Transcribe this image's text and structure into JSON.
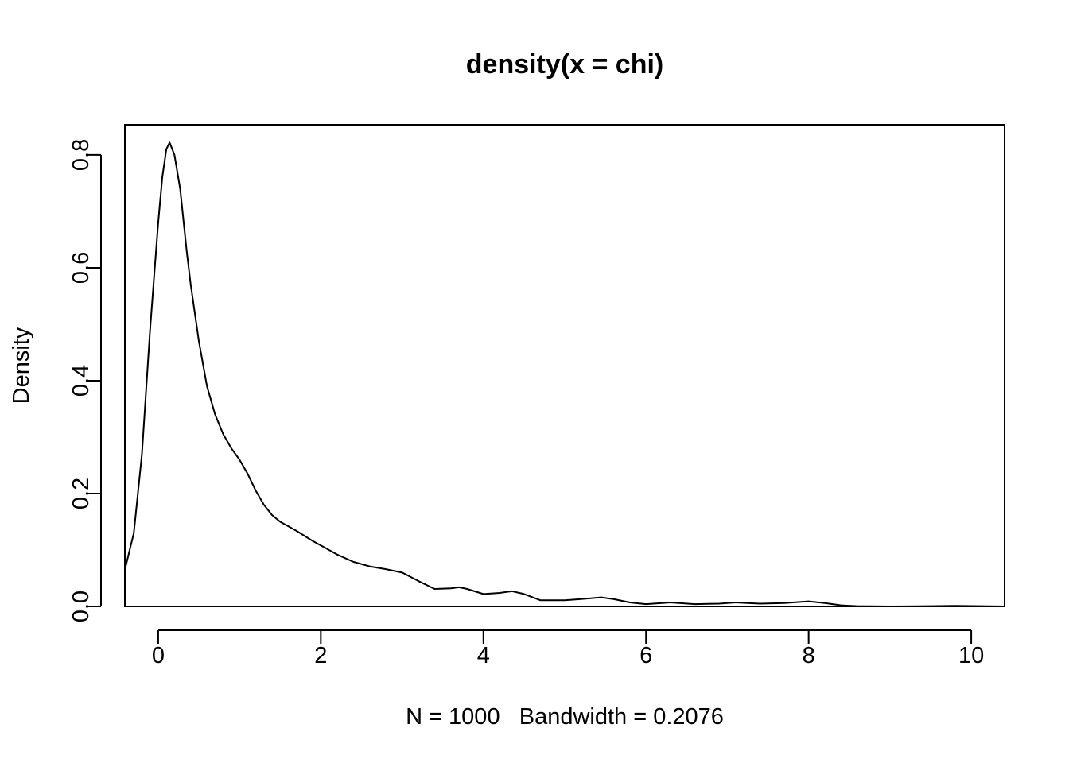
{
  "chart_data": {
    "type": "line",
    "title": "density(x = chi)",
    "xlabel": "N = 1000   Bandwidth = 0.2076",
    "ylabel": "Density",
    "xlim": [
      -0.41,
      10.41
    ],
    "ylim": [
      0,
      0.8534
    ],
    "grid": false,
    "legend": "none",
    "x_ticks": [
      0,
      2,
      4,
      6,
      8,
      10
    ],
    "x_tick_labels": [
      "0",
      "2",
      "4",
      "6",
      "8",
      "10"
    ],
    "y_ticks": [
      0,
      0.2,
      0.4,
      0.6,
      0.8
    ],
    "y_tick_labels": [
      "0.0",
      "0.2",
      "0.4",
      "0.6",
      "0.8"
    ],
    "baseline": 0,
    "colors": {
      "line": "#000000",
      "baseline": "#bebebe",
      "frame": "#000000"
    },
    "series": [
      {
        "x": [
          -0.41,
          -0.3,
          -0.2,
          -0.1,
          0.0,
          0.05,
          0.1,
          0.14,
          0.2,
          0.27,
          0.35,
          0.4,
          0.5,
          0.55,
          0.6,
          0.7,
          0.8,
          0.9,
          1.0,
          1.1,
          1.2,
          1.3,
          1.4,
          1.5,
          1.6,
          1.7,
          1.8,
          1.9,
          2.0,
          2.2,
          2.4,
          2.6,
          2.8,
          3.0,
          3.2,
          3.4,
          3.6,
          3.7,
          3.8,
          4.0,
          4.2,
          4.35,
          4.5,
          4.7,
          5.0,
          5.2,
          5.45,
          5.6,
          5.8,
          6.0,
          6.3,
          6.6,
          6.9,
          7.1,
          7.4,
          7.7,
          8.0,
          8.2,
          8.4,
          8.6,
          9.0,
          9.5,
          9.8,
          10.41
        ],
        "y": [
          0.065,
          0.13,
          0.27,
          0.49,
          0.68,
          0.76,
          0.81,
          0.822,
          0.8,
          0.74,
          0.63,
          0.57,
          0.47,
          0.43,
          0.39,
          0.34,
          0.305,
          0.28,
          0.26,
          0.235,
          0.205,
          0.18,
          0.162,
          0.15,
          0.142,
          0.134,
          0.125,
          0.116,
          0.108,
          0.092,
          0.079,
          0.071,
          0.066,
          0.06,
          0.045,
          0.031,
          0.032,
          0.034,
          0.031,
          0.022,
          0.024,
          0.027,
          0.022,
          0.011,
          0.011,
          0.013,
          0.016,
          0.013,
          0.007,
          0.004,
          0.007,
          0.004,
          0.005,
          0.007,
          0.005,
          0.006,
          0.009,
          0.006,
          0.002,
          0.0005,
          0.0,
          0.0005,
          0.001,
          0.0
        ]
      }
    ]
  }
}
